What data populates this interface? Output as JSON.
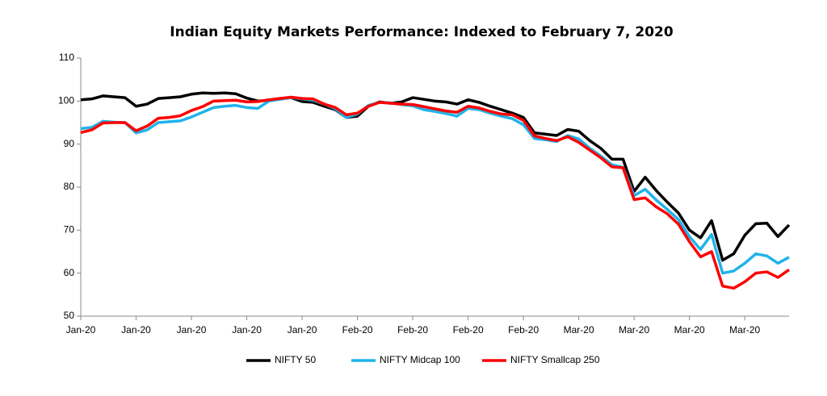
{
  "chart_data": {
    "type": "line",
    "title": "Indian Equity Markets Performance: Indexed to February 7, 2020",
    "categories": [
      "Jan-20",
      null,
      null,
      null,
      null,
      "Jan-20",
      null,
      null,
      null,
      null,
      "Jan-20",
      null,
      null,
      null,
      null,
      "Jan-20",
      null,
      null,
      null,
      null,
      "Jan-20",
      null,
      null,
      null,
      null,
      "Feb-20",
      null,
      null,
      null,
      null,
      "Feb-20",
      null,
      null,
      null,
      null,
      "Feb-20",
      null,
      null,
      null,
      null,
      "Feb-20",
      null,
      null,
      null,
      null,
      "Mar-20",
      null,
      null,
      null,
      null,
      "Mar-20",
      null,
      null,
      null,
      null,
      "Mar-20",
      null,
      null,
      null,
      null,
      "Mar-20",
      null,
      null,
      null,
      null
    ],
    "series": [
      {
        "name": "NIFTY 50",
        "color": "#000000",
        "values": [
          100.3,
          100.5,
          101.2,
          101.0,
          100.8,
          98.8,
          99.3,
          100.6,
          100.8,
          101.0,
          101.6,
          101.9,
          101.8,
          101.9,
          101.7,
          100.7,
          100.0,
          100.2,
          100.6,
          100.8,
          99.9,
          99.7,
          98.8,
          98.0,
          96.2,
          96.5,
          98.8,
          99.8,
          99.5,
          99.8,
          100.8,
          100.4,
          100.0,
          99.8,
          99.3,
          100.3,
          99.7,
          98.8,
          98.0,
          97.2,
          96.2,
          92.6,
          92.3,
          92.0,
          93.4,
          93.0,
          90.8,
          89.0,
          86.5,
          86.5,
          79.0,
          82.3,
          79.2,
          76.5,
          74.0,
          70.0,
          68.2,
          72.2,
          63.0,
          64.5,
          68.8,
          71.5,
          71.6,
          68.5,
          71.2
        ]
      },
      {
        "name": "NIFTY Midcap 100",
        "color": "#1fb3ea",
        "values": [
          93.6,
          93.9,
          95.3,
          95.1,
          95.0,
          92.6,
          93.3,
          95.0,
          95.2,
          95.4,
          96.3,
          97.4,
          98.5,
          98.8,
          99.0,
          98.5,
          98.3,
          100.0,
          100.4,
          100.8,
          100.5,
          100.2,
          99.3,
          98.2,
          96.2,
          97.0,
          99.0,
          99.7,
          99.6,
          99.2,
          98.9,
          98.0,
          97.6,
          97.1,
          96.5,
          98.3,
          98.0,
          97.2,
          96.5,
          95.9,
          94.5,
          91.3,
          91.0,
          90.6,
          92.0,
          91.2,
          89.0,
          87.2,
          85.2,
          84.6,
          78.0,
          79.5,
          77.0,
          74.8,
          72.5,
          68.5,
          65.5,
          69.0,
          60.0,
          60.5,
          62.3,
          64.5,
          64.0,
          62.3,
          63.7
        ]
      },
      {
        "name": "NIFTY Smallcap 250",
        "color": "#ff0000",
        "values": [
          92.7,
          93.3,
          94.9,
          95.0,
          95.0,
          93.1,
          94.2,
          96.0,
          96.2,
          96.6,
          97.8,
          98.7,
          100.0,
          100.1,
          100.2,
          99.8,
          99.9,
          100.3,
          100.6,
          100.9,
          100.6,
          100.5,
          99.3,
          98.5,
          96.8,
          97.2,
          98.8,
          99.7,
          99.5,
          99.3,
          99.2,
          98.7,
          98.2,
          97.7,
          97.4,
          98.8,
          98.4,
          97.6,
          97.0,
          96.8,
          95.5,
          91.9,
          91.3,
          90.8,
          91.7,
          90.4,
          88.6,
          86.8,
          84.7,
          84.5,
          77.1,
          77.5,
          75.4,
          73.8,
          71.4,
          67.3,
          63.8,
          65.0,
          57.0,
          56.5,
          58.0,
          60.0,
          60.3,
          59.0,
          60.8
        ]
      }
    ],
    "ylim": [
      50,
      110
    ],
    "yticks": [
      50,
      60,
      70,
      80,
      90,
      100,
      110
    ],
    "grid": false,
    "legend": "bottom"
  }
}
